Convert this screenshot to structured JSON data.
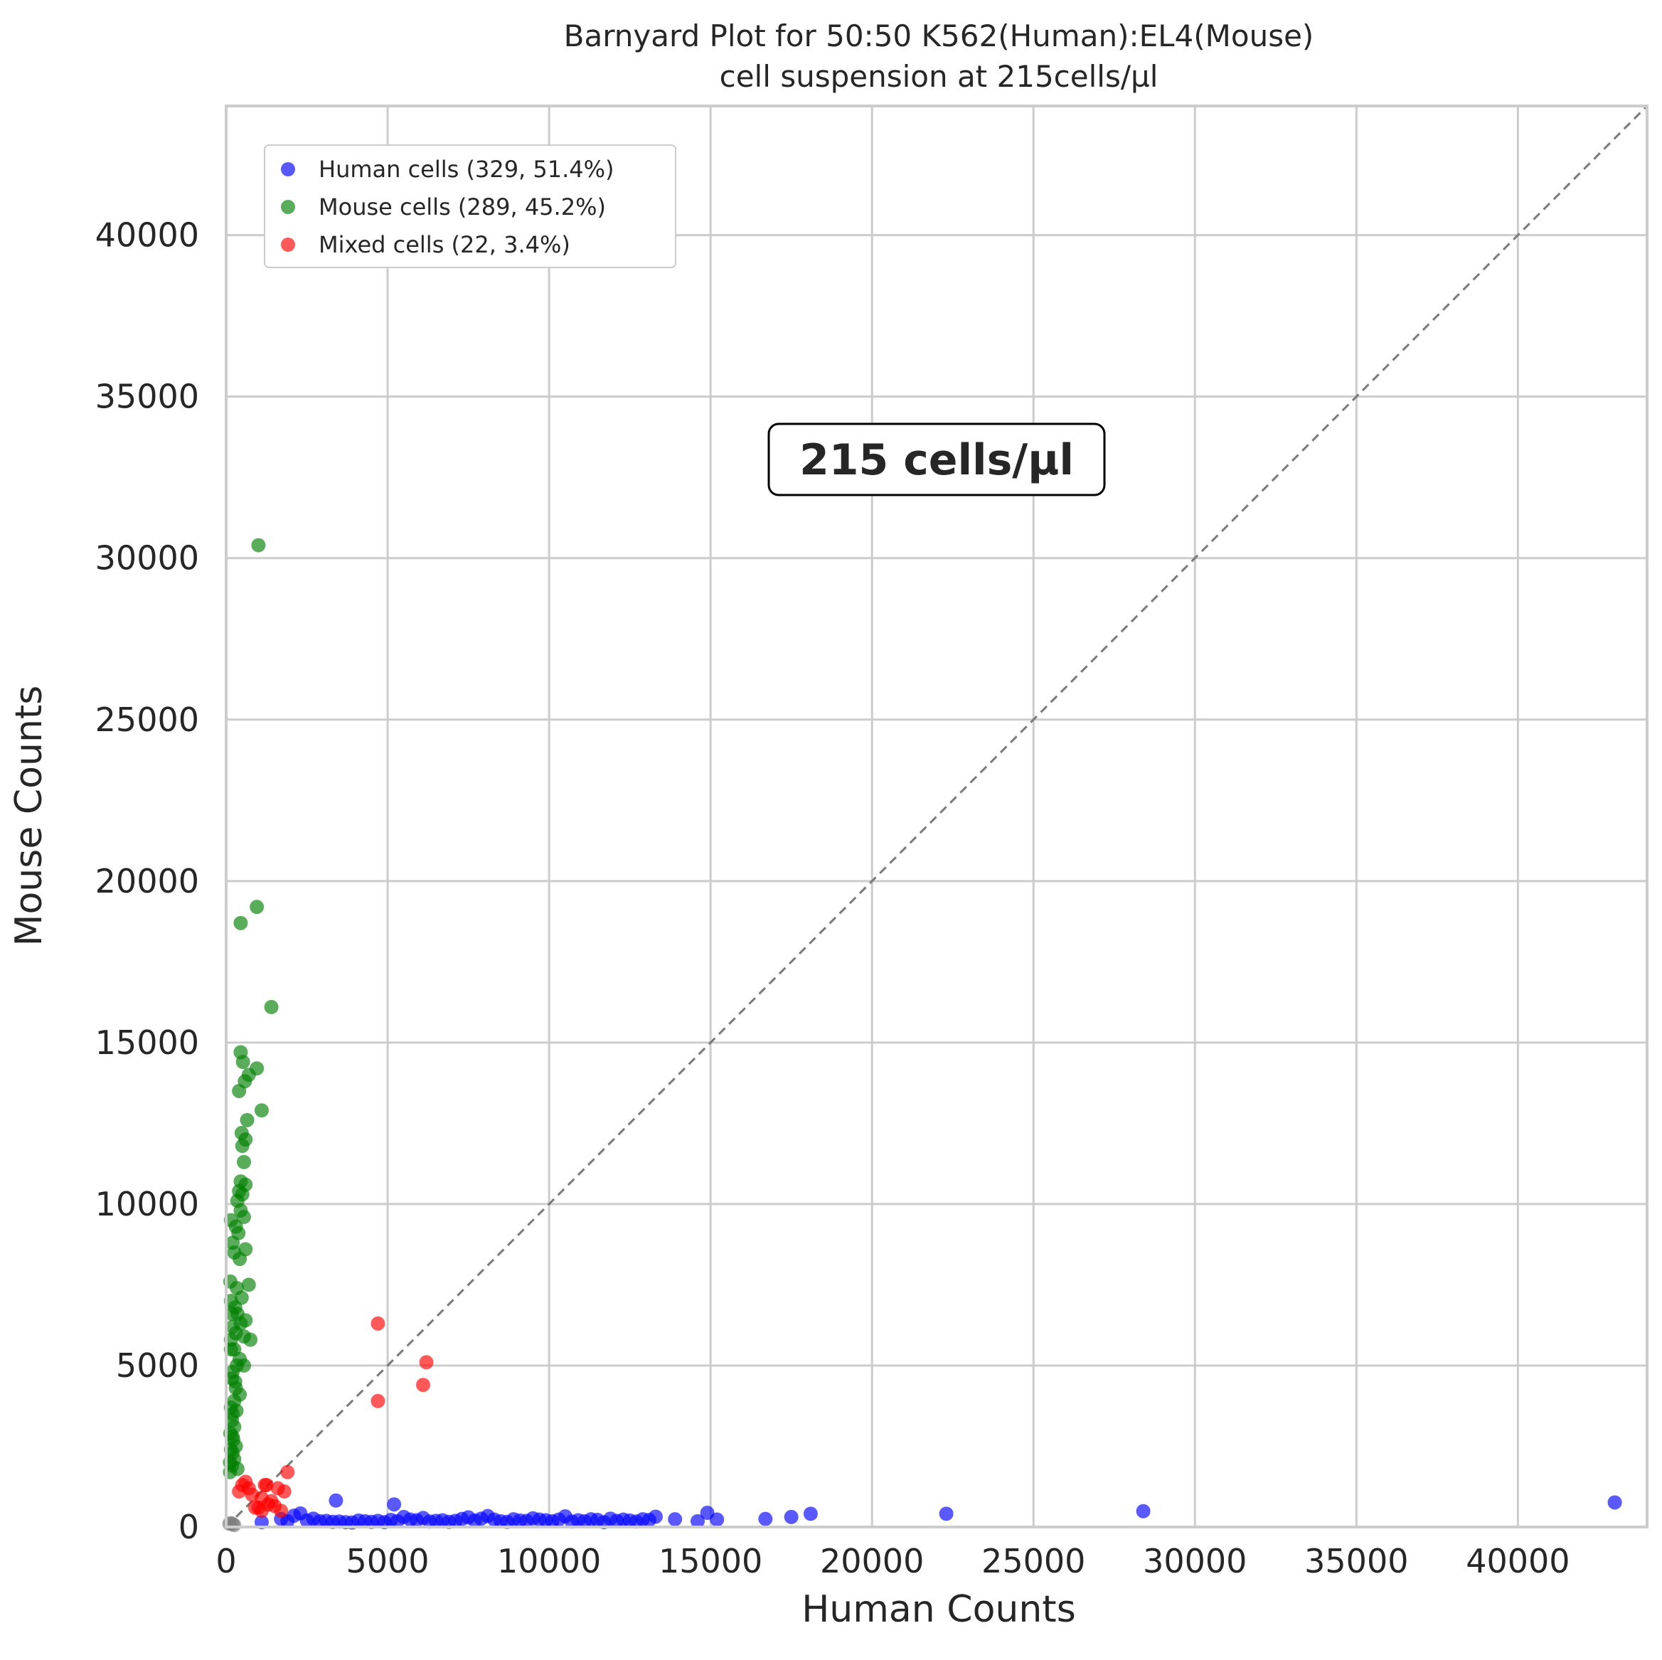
{
  "chart_data": {
    "type": "scatter",
    "title": "Barnyard Plot for 50:50 K562(Human):EL4(Mouse)",
    "subtitle": "cell suspension at 215cells/µl",
    "xlabel": "Human Counts",
    "ylabel": "Mouse Counts",
    "xlim": [
      0,
      44000
    ],
    "ylim": [
      0,
      44000
    ],
    "xticks": [
      0,
      5000,
      10000,
      15000,
      20000,
      25000,
      30000,
      35000,
      40000
    ],
    "yticks": [
      0,
      5000,
      10000,
      15000,
      20000,
      25000,
      30000,
      35000,
      40000
    ],
    "tick_labels": [
      "0",
      "5000",
      "10000",
      "15000",
      "20000",
      "25000",
      "30000",
      "35000",
      "40000"
    ],
    "grid": true,
    "legend_position": "top-left",
    "annotation": "215 cells/µl",
    "diagonal_reference_line": true,
    "series": [
      {
        "name": "Human cells (329, 51.4%)",
        "color": "#0000ff",
        "x": [
          1100,
          1700,
          1900,
          2100,
          2300,
          2500,
          2700,
          2900,
          3100,
          3300,
          3400,
          3500,
          3700,
          3900,
          4100,
          4300,
          4500,
          4700,
          4900,
          5100,
          5200,
          5300,
          5500,
          5700,
          5900,
          6100,
          6300,
          6500,
          6700,
          6900,
          7100,
          7300,
          7500,
          7700,
          7900,
          8100,
          8300,
          8500,
          8700,
          8900,
          9100,
          9300,
          9500,
          9700,
          9900,
          10100,
          10300,
          10500,
          10700,
          10900,
          11100,
          11300,
          11500,
          11700,
          11900,
          12100,
          12300,
          12500,
          12700,
          12900,
          13100,
          13300,
          13900,
          14600,
          14900,
          15200,
          16700,
          17500,
          18100,
          22300,
          28400,
          43000
        ],
        "y": [
          150,
          250,
          180,
          350,
          420,
          200,
          260,
          180,
          190,
          160,
          820,
          170,
          150,
          140,
          200,
          180,
          160,
          190,
          150,
          220,
          700,
          180,
          310,
          230,
          210,
          280,
          170,
          190,
          210,
          160,
          190,
          250,
          300,
          200,
          260,
          340,
          230,
          180,
          160,
          240,
          200,
          190,
          270,
          230,
          210,
          180,
          230,
          330,
          170,
          210,
          180,
          240,
          220,
          150,
          260,
          190,
          230,
          200,
          170,
          240,
          220,
          320,
          240,
          180,
          440,
          230,
          250,
          310,
          410,
          410,
          490,
          760
        ]
      },
      {
        "name": "Mouse cells (289, 45.2%)",
        "color": "#008000",
        "x": [
          1000,
          950,
          450,
          1400,
          450,
          520,
          950,
          700,
          580,
          400,
          1100,
          650,
          480,
          600,
          500,
          550,
          450,
          600,
          400,
          500,
          350,
          450,
          550,
          300,
          380,
          600,
          250,
          420,
          700,
          330,
          480,
          150,
          280,
          350,
          600,
          450,
          750,
          200,
          300,
          550,
          150,
          250,
          420,
          330,
          200,
          550,
          180,
          300,
          420,
          250,
          150,
          200,
          320,
          180,
          250,
          130,
          220,
          300,
          150,
          200,
          250,
          120,
          180,
          350,
          120,
          200,
          280,
          150,
          180,
          130,
          200,
          150
        ],
        "y": [
          30400,
          19200,
          18700,
          16100,
          14700,
          14400,
          14200,
          14000,
          13800,
          13500,
          12900,
          12600,
          12200,
          12000,
          11800,
          11300,
          10700,
          10600,
          10400,
          10300,
          10100,
          9800,
          9600,
          9300,
          9100,
          8600,
          8500,
          8300,
          7500,
          7400,
          7100,
          7000,
          6800,
          6600,
          6400,
          6300,
          5800,
          6200,
          6000,
          5900,
          5800,
          5500,
          5200,
          5000,
          4800,
          5000,
          4600,
          4300,
          4100,
          3900,
          3700,
          3500,
          3600,
          3300,
          3100,
          2900,
          2700,
          2500,
          2400,
          2300,
          2100,
          2000,
          1900,
          1800,
          1700,
          2800,
          4500,
          5500,
          6600,
          7600,
          8800,
          9500
        ]
      },
      {
        "name": "Mixed cells (22, 3.4%)",
        "color": "#ff0000",
        "x": [
          4700,
          6200,
          6100,
          4700,
          1900,
          1800,
          1600,
          1400,
          1200,
          1100,
          1000,
          600,
          500,
          400,
          1300,
          1500,
          1700,
          900,
          800,
          700,
          1250,
          1100
        ],
        "y": [
          6300,
          5100,
          4400,
          3900,
          1700,
          1100,
          1200,
          800,
          1300,
          900,
          600,
          1400,
          1300,
          1100,
          700,
          650,
          500,
          600,
          1000,
          1200,
          1300,
          500
        ]
      },
      {
        "name": "",
        "color": "#808080",
        "x": [
          100,
          150,
          200,
          250
        ],
        "y": [
          100,
          120,
          90,
          60
        ]
      }
    ]
  }
}
